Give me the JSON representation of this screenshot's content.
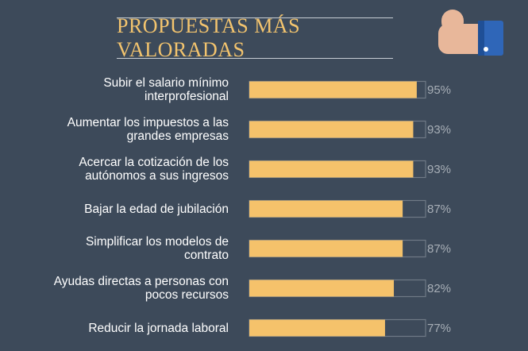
{
  "title": "PROPUESTAS MÁS VALORADAS",
  "icon": "thumbs-up-icon",
  "colors": {
    "background": "#3d4a5a",
    "bar": "#f5c26b",
    "title": "#f3c46e",
    "cuff": "#2f66b8",
    "hand": "#e8b79a"
  },
  "chart_data": {
    "type": "bar",
    "orientation": "horizontal",
    "title": "PROPUESTAS MÁS VALORADAS",
    "categories": [
      [
        "Subir el salario mínimo",
        "interprofesional"
      ],
      [
        "Aumentar los impuestos a las",
        "grandes empresas"
      ],
      [
        "Acercar la cotización de los",
        "autónomos a sus ingresos"
      ],
      [
        "Bajar la edad de jubilación"
      ],
      [
        "Simplificar los modelos de",
        "contrato"
      ],
      [
        "Ayudas directas a personas con",
        "pocos recursos"
      ],
      [
        "Reducir la jornada laboral"
      ]
    ],
    "values": [
      95,
      93,
      93,
      87,
      87,
      82,
      77
    ],
    "value_labels": [
      "95%",
      "93%",
      "93%",
      "87%",
      "87%",
      "82%",
      "77%"
    ],
    "xlim": [
      0,
      100
    ],
    "unit": "%",
    "grid": false,
    "legend": "none"
  }
}
